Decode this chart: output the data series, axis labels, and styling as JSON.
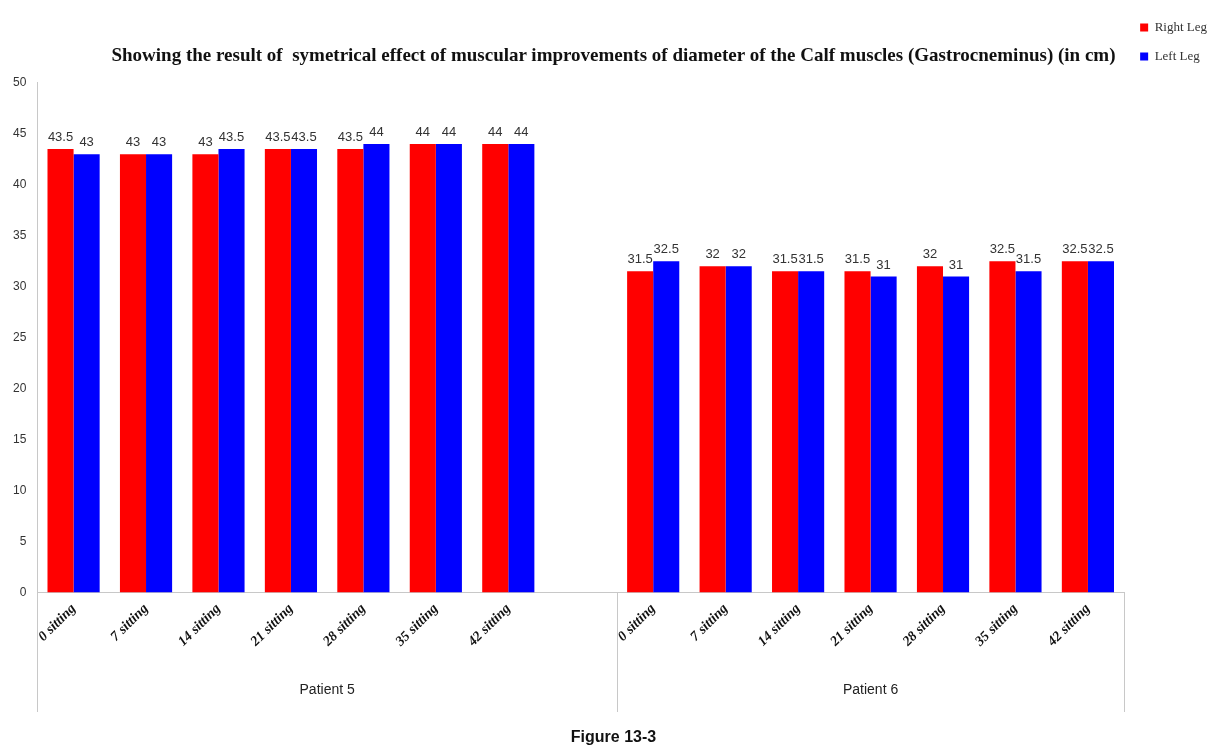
{
  "chart_data": {
    "type": "bar",
    "title": "Showing the result of  symetrical effect of muscular improvements of diameter of the Calf muscles (Gastrocneminus) (in cm)",
    "categories": [
      "0 sitting",
      "7 sitting",
      "14 sitting",
      "21 sitting",
      "28 sitting",
      "35 sitting",
      "42 sitting",
      null,
      "0 sitting",
      "7 sitting",
      "14 sitting",
      "21 sitting",
      "28 sitting",
      "35 sitting",
      "42 sitting"
    ],
    "series": [
      {
        "name": "Right Leg",
        "color": "#ff0000",
        "values": [
          43.5,
          43,
          43,
          43.5,
          43.5,
          44,
          44,
          null,
          31.5,
          32,
          31.5,
          31.5,
          32,
          32.5,
          32.5
        ]
      },
      {
        "name": "Left Leg",
        "color": "#0000ff",
        "values": [
          43,
          43,
          43.5,
          43.5,
          44,
          44,
          44,
          null,
          32.5,
          32,
          31.5,
          31,
          31,
          31.5,
          32.5
        ]
      }
    ],
    "ylim": [
      0,
      50
    ],
    "yticks": [
      0,
      5,
      10,
      15,
      20,
      25,
      30,
      35,
      40,
      45,
      50
    ],
    "grid": false,
    "legend": "top right",
    "data_labels": true,
    "annotations": [
      "Patient 5",
      "Patient 6",
      "Figure 13-3"
    ]
  }
}
